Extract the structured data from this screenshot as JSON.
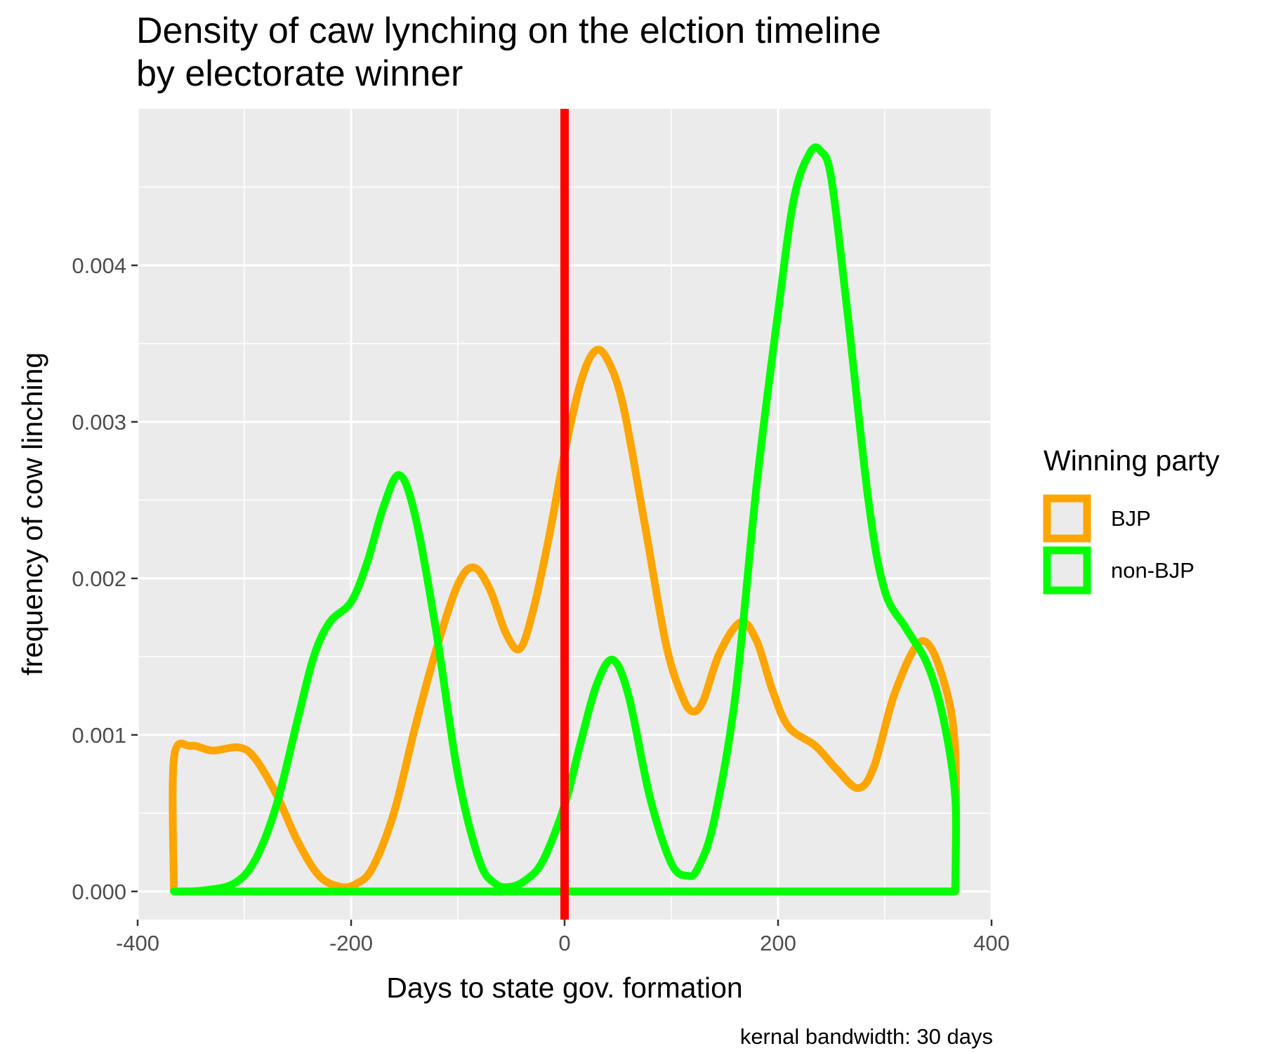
{
  "chart_data": {
    "type": "line",
    "subtype": "density",
    "title": [
      "Density of caw lynching on the elction timeline",
      "by electorate winner"
    ],
    "xlabel": "Days to state gov. formation",
    "ylabel": "frequency of cow linching",
    "caption": "kernal bandwidth: 30 days",
    "xlim": [
      -400,
      400
    ],
    "ylim": [
      -0.00018,
      0.005
    ],
    "x_ticks": [
      -400,
      -200,
      0,
      200,
      400
    ],
    "x_tick_labels": [
      "-400",
      "-200",
      "0",
      "200",
      "400"
    ],
    "y_ticks": [
      0,
      0.001,
      0.002,
      0.003,
      0.004
    ],
    "y_tick_labels": [
      "0.000",
      "0.001",
      "0.002",
      "0.003",
      "0.004"
    ],
    "grid": true,
    "legend": {
      "title": "Winning party",
      "position": "right"
    },
    "vline": {
      "x": 0,
      "color": "#ff0000"
    },
    "panel_background": "#ebebeb",
    "series": [
      {
        "name": "BJP",
        "color": "#ffa500",
        "x": [
          -366,
          -366,
          -350,
          -330,
          -305,
          -290,
          -270,
          -250,
          -230,
          -210,
          -195,
          -180,
          -160,
          -140,
          -120,
          -100,
          -85,
          -70,
          -55,
          -42,
          -30,
          -15,
          0,
          15,
          28,
          40,
          55,
          75,
          95,
          110,
          120,
          130,
          145,
          165,
          180,
          195,
          210,
          235,
          255,
          275,
          290,
          310,
          335,
          355,
          366,
          366
        ],
        "y": [
          0,
          0.00085,
          0.00093,
          0.0009,
          0.00092,
          0.00085,
          0.00062,
          0.00032,
          0.0001,
          3e-05,
          5e-05,
          0.00015,
          0.0005,
          0.00105,
          0.00155,
          0.00196,
          0.00207,
          0.00193,
          0.00165,
          0.00155,
          0.00178,
          0.00225,
          0.0028,
          0.00325,
          0.00345,
          0.0034,
          0.0031,
          0.00235,
          0.00158,
          0.00125,
          0.00115,
          0.00122,
          0.00152,
          0.00172,
          0.0016,
          0.00128,
          0.00105,
          0.00093,
          0.00078,
          0.00066,
          0.0008,
          0.00128,
          0.0016,
          0.00135,
          0.0009,
          0
        ]
      },
      {
        "name": "non-BJP",
        "color": "#00ff00",
        "x": [
          -366,
          -340,
          -310,
          -290,
          -270,
          -250,
          -235,
          -220,
          -200,
          -185,
          -170,
          -155,
          -140,
          -120,
          -100,
          -80,
          -65,
          -50,
          -35,
          -20,
          0,
          15,
          30,
          45,
          60,
          80,
          100,
          115,
          125,
          140,
          160,
          180,
          200,
          215,
          230,
          240,
          250,
          265,
          285,
          300,
          320,
          340,
          355,
          366,
          366
        ],
        "y": [
          0,
          5e-06,
          5e-05,
          0.0002,
          0.00055,
          0.0011,
          0.0015,
          0.00172,
          0.00185,
          0.0021,
          0.00245,
          0.00266,
          0.0024,
          0.00165,
          0.00075,
          0.0002,
          5e-05,
          3e-05,
          8e-05,
          0.0002,
          0.00055,
          0.00095,
          0.00132,
          0.00148,
          0.00125,
          0.0006,
          0.00018,
          0.0001,
          0.00015,
          0.00045,
          0.00125,
          0.0026,
          0.0037,
          0.00443,
          0.00472,
          0.00473,
          0.00455,
          0.0037,
          0.00248,
          0.00192,
          0.00168,
          0.00145,
          0.0011,
          0.0006,
          0
        ]
      }
    ]
  }
}
